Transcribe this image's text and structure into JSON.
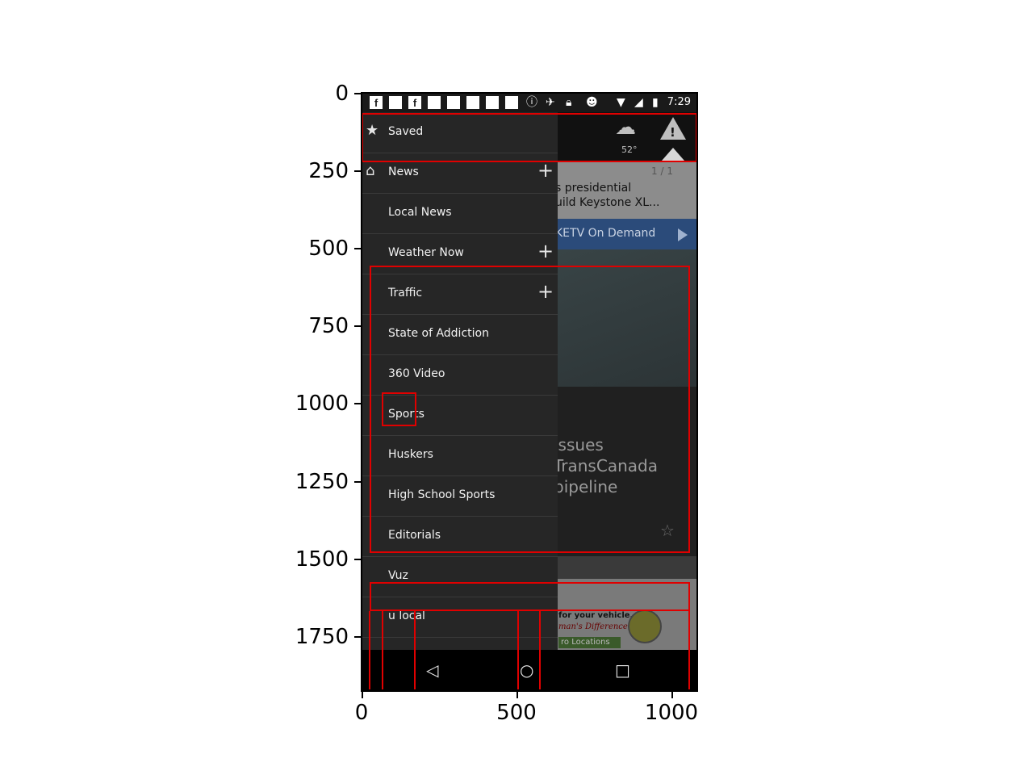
{
  "status_bar": {
    "time": "7:29",
    "icons": [
      "facebook-icon",
      "square-icon",
      "facebook-icon",
      "square-icon",
      "square-icon",
      "square-icon",
      "square-icon",
      "square-icon",
      "info-icon",
      "satellite-icon",
      "lock-icon",
      "android-icon",
      "wifi-icon",
      "no-signal-icon",
      "battery-icon"
    ]
  },
  "background_app": {
    "temperature": "52°",
    "pager": "1 / 1",
    "headline_line1": "s presidential",
    "headline_line2": "uild Keystone XL...",
    "on_demand": "KETV On Demand",
    "story_line1": "issues",
    "story_line2": "TransCanada",
    "story_line3": "pipeline",
    "ad_line1": "for your vehicle.",
    "ad_line2": "man's Difference!",
    "ad_line3": "ro Locations"
  },
  "drawer": {
    "items": [
      {
        "label": "Saved",
        "icon": "star-icon",
        "expandable": false
      },
      {
        "label": "News",
        "icon": "home-icon",
        "expandable": true
      },
      {
        "label": "Local News",
        "icon": "",
        "expandable": false
      },
      {
        "label": "Weather Now",
        "icon": "",
        "expandable": true
      },
      {
        "label": "Traffic",
        "icon": "",
        "expandable": true
      },
      {
        "label": "State of Addiction",
        "icon": "",
        "expandable": false
      },
      {
        "label": "360 Video",
        "icon": "",
        "expandable": false
      },
      {
        "label": "Sports",
        "icon": "",
        "expandable": false
      },
      {
        "label": "Huskers",
        "icon": "",
        "expandable": false
      },
      {
        "label": "High School Sports",
        "icon": "",
        "expandable": false
      },
      {
        "label": "Editorials",
        "icon": "",
        "expandable": false
      },
      {
        "label": "Vuz",
        "icon": "",
        "expandable": false
      },
      {
        "label": "u local",
        "icon": "",
        "expandable": false
      }
    ]
  },
  "nav_bar": {
    "back": "◁",
    "home": "○",
    "recents": "□"
  },
  "axes": {
    "y_ticks": [
      "0",
      "250",
      "500",
      "750",
      "1000",
      "1250",
      "1500",
      "1750"
    ],
    "x_ticks": [
      "0",
      "500",
      "1000"
    ]
  },
  "colors": {
    "annotation": "#e00000",
    "drawer_bg": "#262626",
    "status_bar_bg": "#1a1a1a",
    "on_demand_bg": "#2b4b7a"
  }
}
